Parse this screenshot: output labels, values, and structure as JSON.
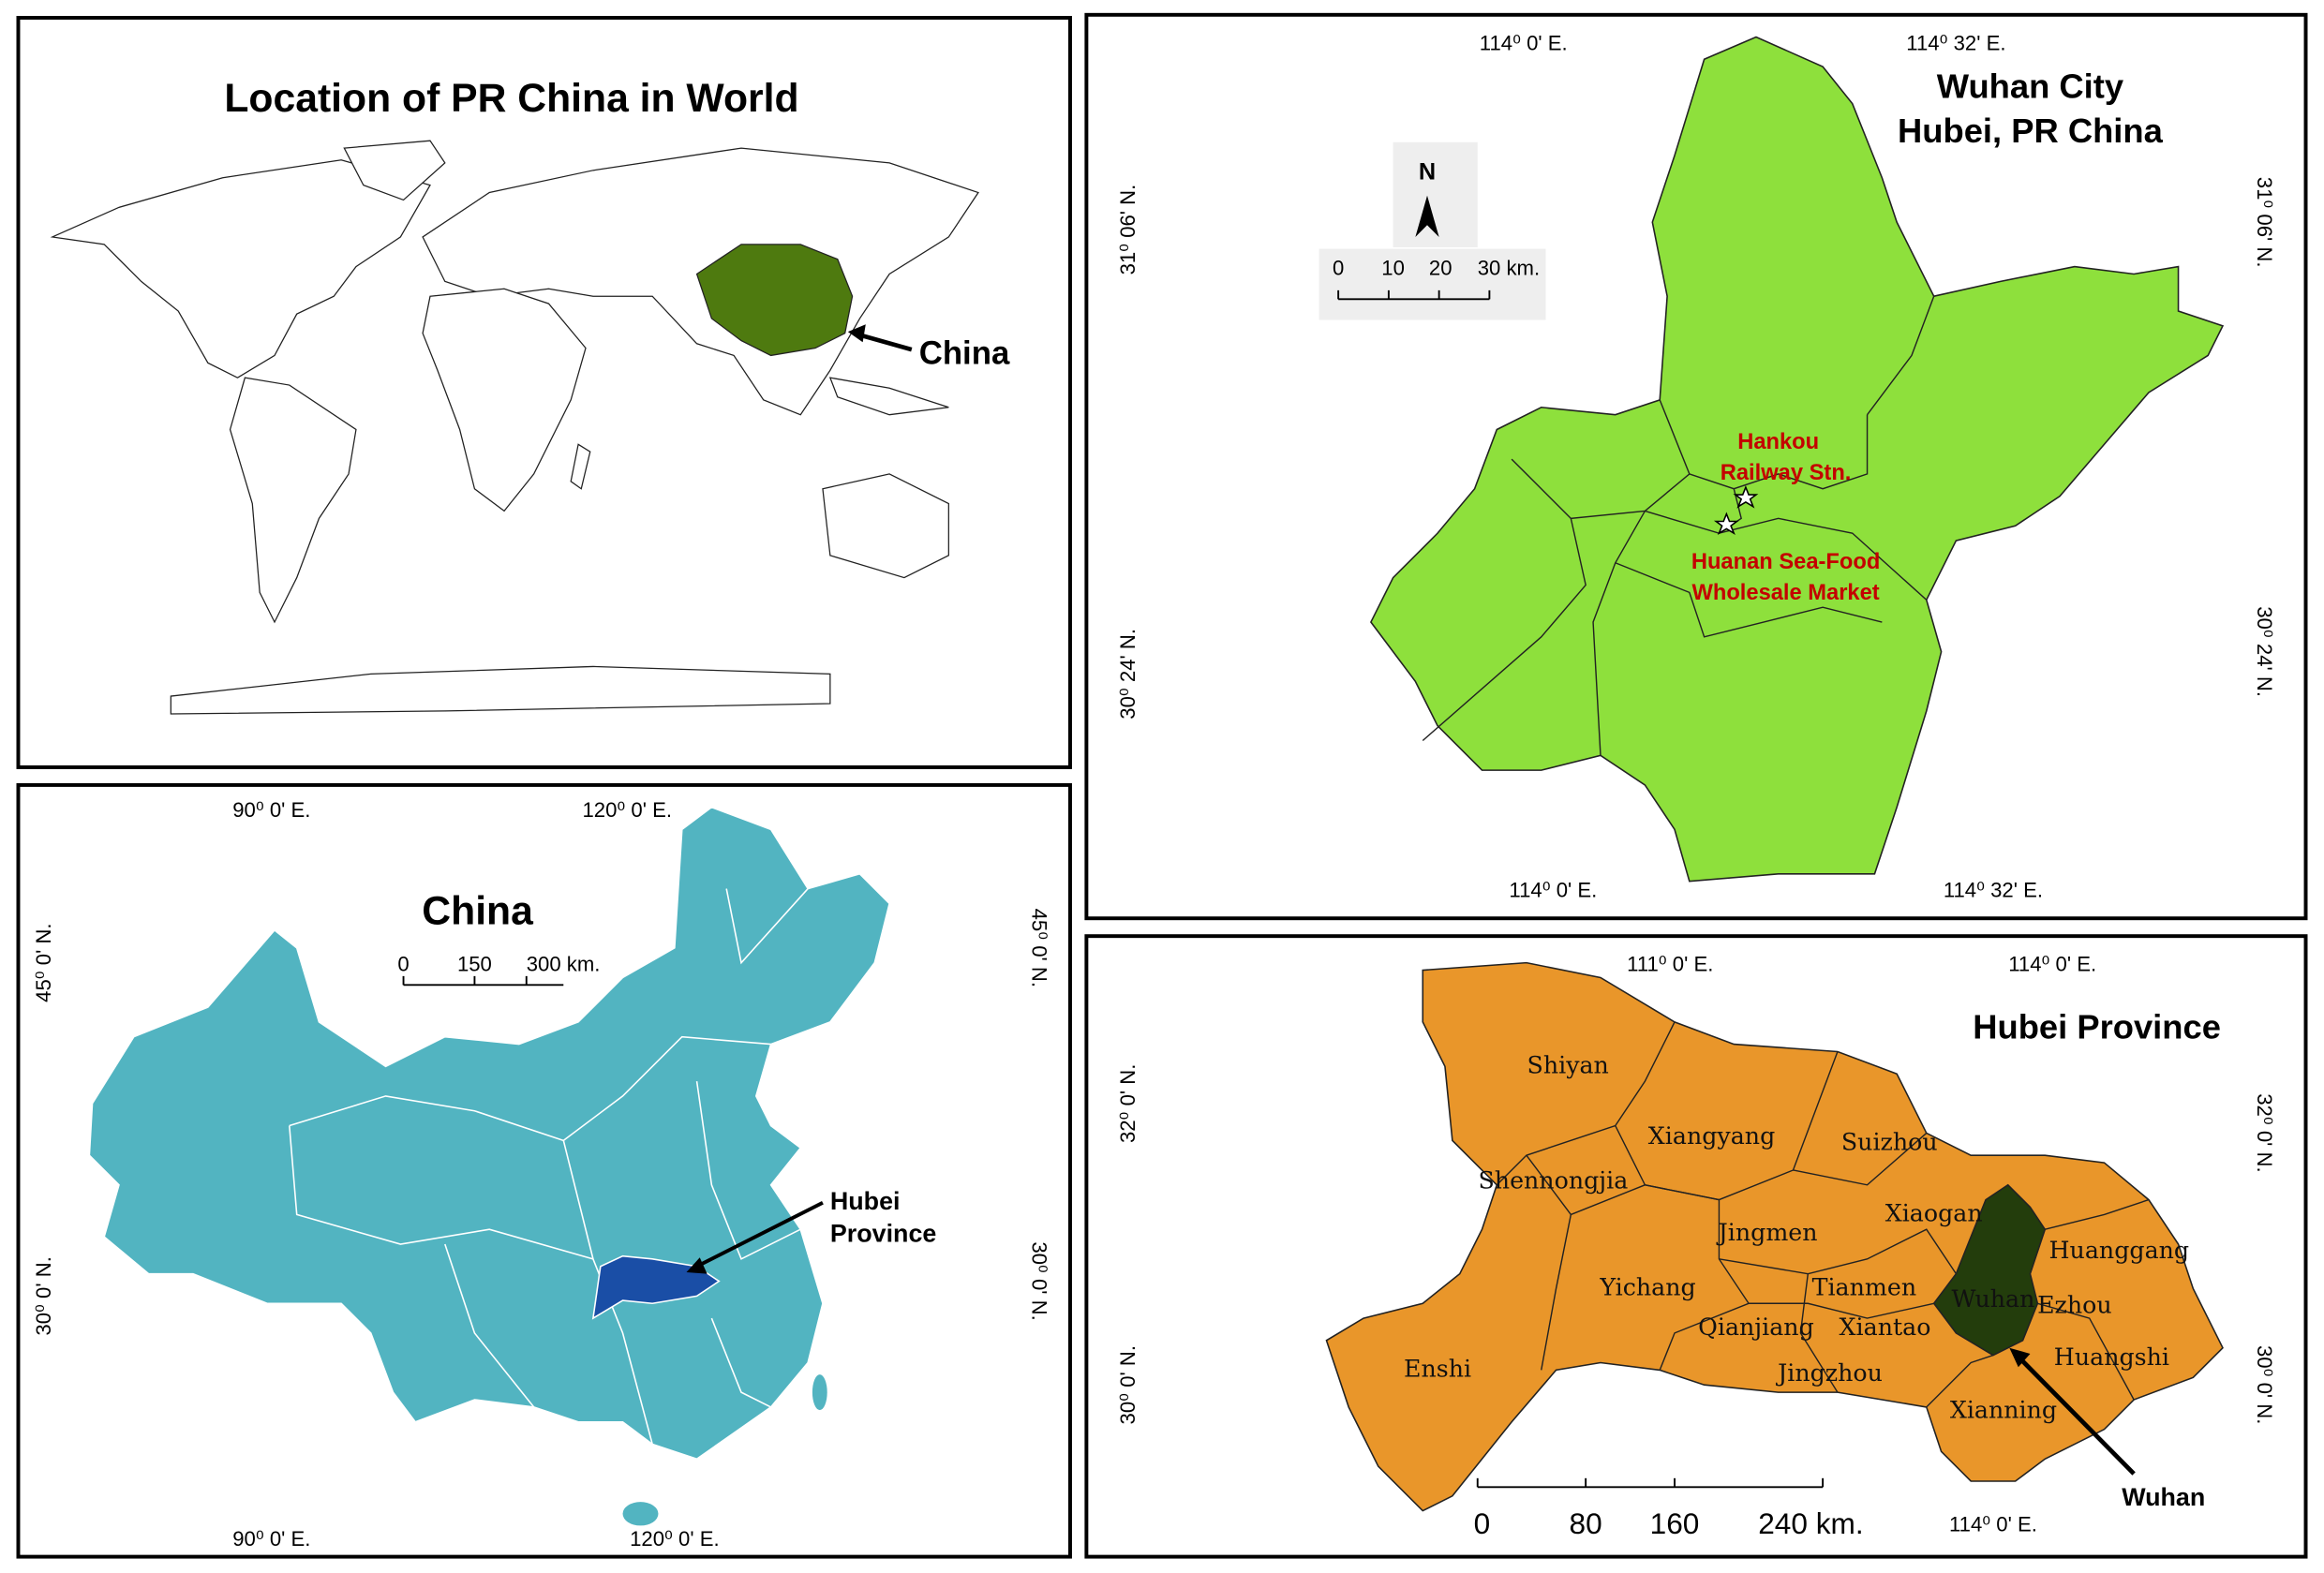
{
  "world_panel": {
    "title": "Location of PR China in World",
    "label": "China"
  },
  "china_panel": {
    "title": "China",
    "scale": [
      "0",
      "150",
      "300 km."
    ],
    "label": [
      "Hubei",
      "Province"
    ],
    "lon_top": [
      "90⁰ 0' E.",
      "120⁰ 0' E."
    ],
    "lon_bottom": [
      "90⁰ 0' E.",
      "120⁰ 0' E."
    ],
    "lat_left": [
      "45⁰ 0' N.",
      "30⁰ 0' N."
    ],
    "lat_right": [
      "45⁰ 0' N.",
      "30⁰ 0' N."
    ]
  },
  "wuhan_panel": {
    "title": [
      "Wuhan City",
      "Hubei, PR China"
    ],
    "north": "N",
    "scale": [
      "0",
      "10",
      "20",
      "30 km."
    ],
    "landmarks": [
      "Hankou",
      "Railway Stn.",
      "Huanan Sea-Food",
      "Wholesale Market"
    ],
    "lon_top": [
      "114⁰ 0' E.",
      "114⁰ 32' E."
    ],
    "lon_bottom": [
      "114⁰ 0' E.",
      "114⁰ 32' E."
    ],
    "lat_left": [
      "31⁰ 06' N.",
      "30⁰ 24' N."
    ],
    "lat_right": [
      "31⁰ 06' N.",
      "30⁰ 24' N."
    ]
  },
  "hubei_panel": {
    "title": "Hubei Province",
    "cities": [
      "Shiyan",
      "Xiangyang",
      "Suizhou",
      "Shennongjia",
      "Jingmen",
      "Xiaogan",
      "Huanggang",
      "Yichang",
      "Tianmen",
      "Wuhan",
      "Ezhou",
      "Enshi",
      "Qianjiang",
      "Xiantao",
      "Huangshi",
      "Jingzhou",
      "Xianning"
    ],
    "label": "Wuhan",
    "scale": [
      "0",
      "80",
      "160",
      "240 km."
    ],
    "lon_top": [
      "111⁰ 0' E.",
      "114⁰ 0' E."
    ],
    "lon_bottom": [
      "114⁰ 0' E."
    ],
    "lat_left": [
      "32⁰ 0' N.",
      "30⁰ 0' N."
    ],
    "lat_right": [
      "32⁰ 0' N.",
      "30⁰ 0' N."
    ]
  }
}
